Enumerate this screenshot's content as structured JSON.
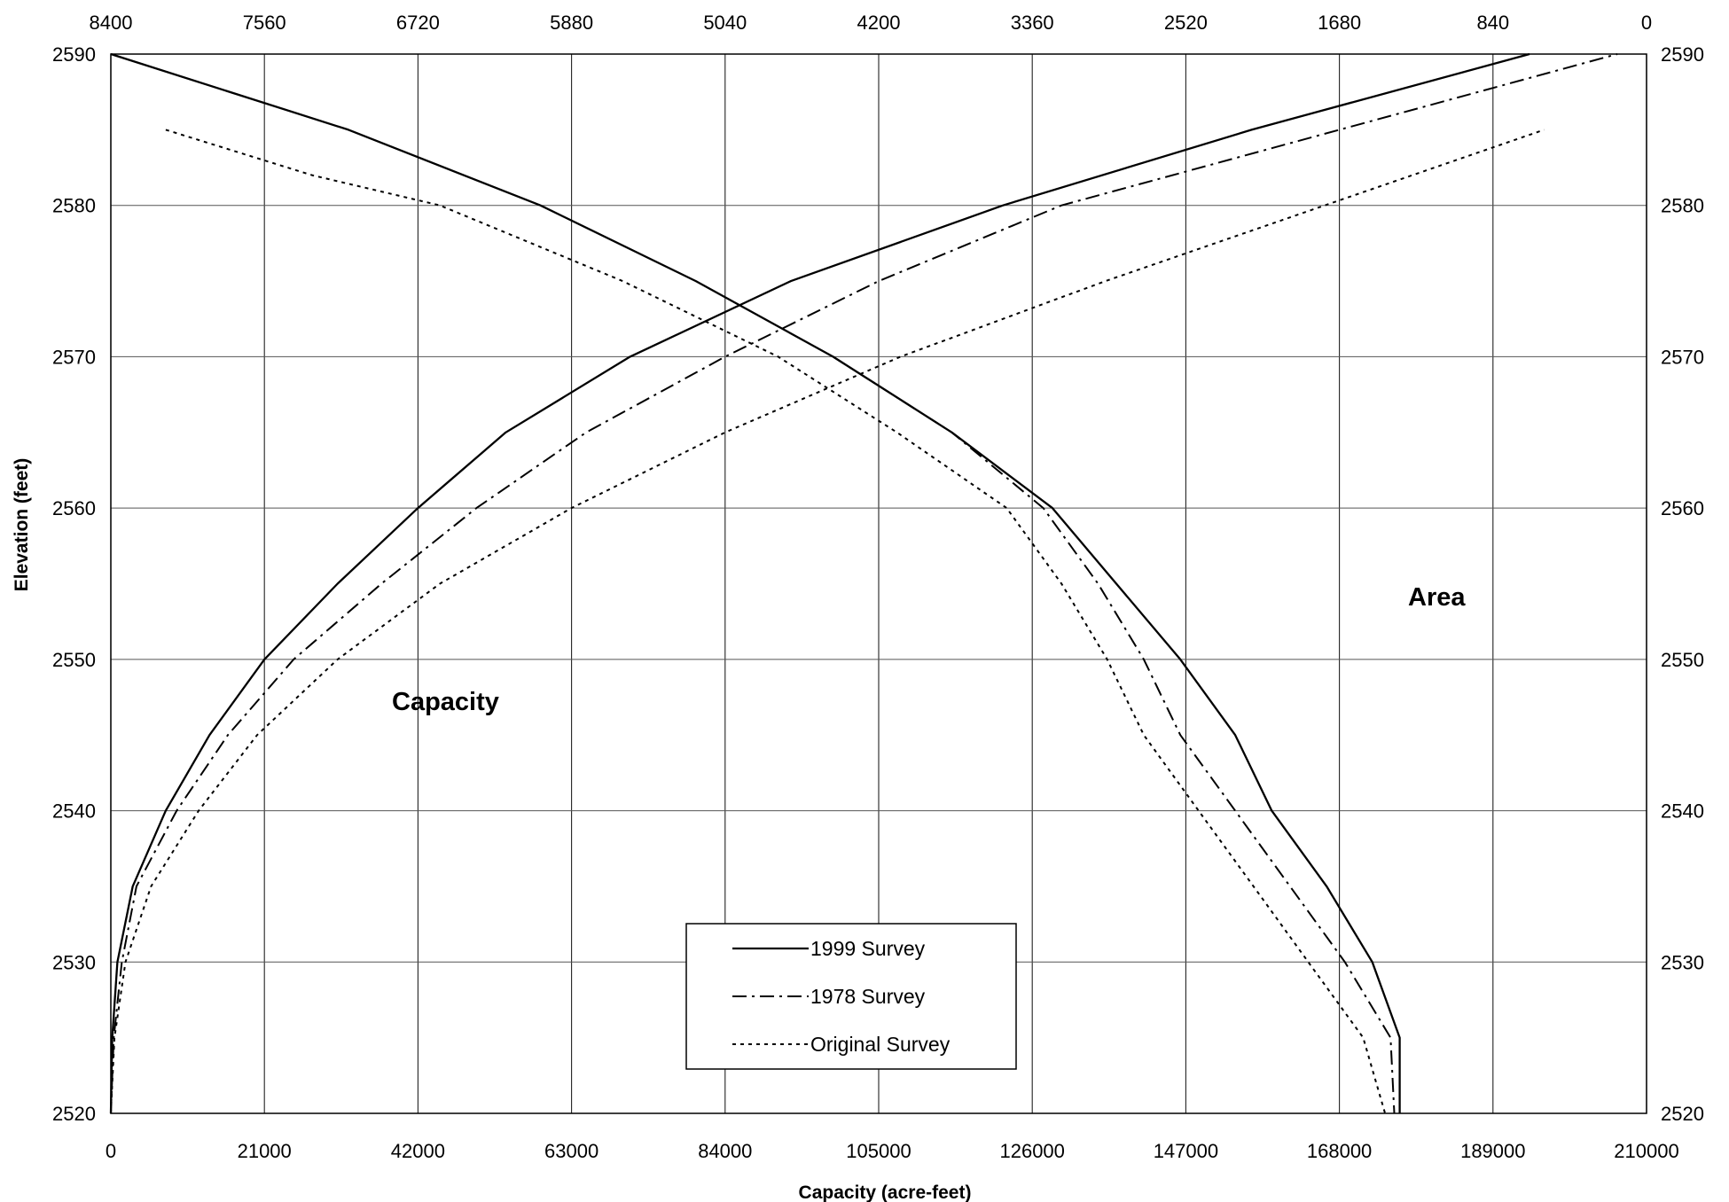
{
  "chart_data": {
    "type": "line",
    "title": "",
    "xlabel": "Capacity (acre-feet)",
    "ylabel": "Elevation (feet)",
    "x_bottom": {
      "min": 0,
      "max": 210000,
      "ticks": [
        "0",
        "21000",
        "42000",
        "63000",
        "84000",
        "105000",
        "126000",
        "147000",
        "168000",
        "189000",
        "210000"
      ]
    },
    "x_top": {
      "min": 0,
      "max": 8400,
      "reversed": true,
      "ticks": [
        "8400",
        "7560",
        "6720",
        "5880",
        "5040",
        "4200",
        "3360",
        "2520",
        "1680",
        "840",
        "0"
      ]
    },
    "y": {
      "min": 2520,
      "max": 2590,
      "ticks": [
        "2520",
        "2530",
        "2540",
        "2550",
        "2560",
        "2570",
        "2580",
        "2590"
      ]
    },
    "grid": true,
    "legend_position": "bottom-center",
    "annotations": [
      {
        "text": "Capacity"
      },
      {
        "text": "Area"
      }
    ],
    "legend": [
      {
        "label": "1999 Survey",
        "style": "solid"
      },
      {
        "label": "1978 Survey",
        "style": "dash-dot"
      },
      {
        "label": "Original Survey",
        "style": "dotted"
      }
    ],
    "capacity_series": [
      {
        "name": "1999 Survey",
        "style": "solid",
        "points": [
          [
            0,
            2520
          ],
          [
            200,
            2525
          ],
          [
            900,
            2530
          ],
          [
            3000,
            2535
          ],
          [
            7500,
            2540
          ],
          [
            13500,
            2545
          ],
          [
            21000,
            2550
          ],
          [
            31000,
            2555
          ],
          [
            42000,
            2560
          ],
          [
            54000,
            2565
          ],
          [
            71000,
            2570
          ],
          [
            93000,
            2575
          ],
          [
            122000,
            2580
          ],
          [
            156000,
            2585
          ],
          [
            194000,
            2590
          ]
        ]
      },
      {
        "name": "1978 Survey",
        "style": "dash-dot",
        "points": [
          [
            0,
            2520
          ],
          [
            400,
            2525
          ],
          [
            1500,
            2530
          ],
          [
            3500,
            2535
          ],
          [
            9000,
            2540
          ],
          [
            16000,
            2545
          ],
          [
            25000,
            2550
          ],
          [
            37000,
            2555
          ],
          [
            50000,
            2560
          ],
          [
            65000,
            2565
          ],
          [
            84000,
            2570
          ],
          [
            105000,
            2575
          ],
          [
            130000,
            2580
          ],
          [
            168000,
            2585
          ],
          [
            206000,
            2590
          ]
        ]
      },
      {
        "name": "Original Survey",
        "style": "dotted",
        "points": [
          [
            0,
            2520
          ],
          [
            500,
            2525
          ],
          [
            2000,
            2530
          ],
          [
            5500,
            2535
          ],
          [
            12000,
            2540
          ],
          [
            20000,
            2545
          ],
          [
            31000,
            2550
          ],
          [
            45000,
            2555
          ],
          [
            63000,
            2560
          ],
          [
            84000,
            2565
          ],
          [
            108000,
            2570
          ],
          [
            136000,
            2575
          ],
          [
            166000,
            2580
          ],
          [
            196000,
            2585
          ]
        ]
      }
    ],
    "area_series": [
      {
        "name": "1999 Survey",
        "style": "solid",
        "points": [
          [
            8400,
            2590
          ],
          [
            7100,
            2585
          ],
          [
            6050,
            2580
          ],
          [
            5200,
            2575
          ],
          [
            4450,
            2570
          ],
          [
            3800,
            2565
          ],
          [
            3250,
            2560
          ],
          [
            2900,
            2555
          ],
          [
            2550,
            2550
          ],
          [
            2250,
            2545
          ],
          [
            2050,
            2540
          ],
          [
            1750,
            2535
          ],
          [
            1500,
            2530
          ],
          [
            1350,
            2525
          ],
          [
            1350,
            2520
          ]
        ]
      },
      {
        "name": "1978 Survey",
        "style": "dash-dot",
        "points": [
          [
            4450,
            2570
          ],
          [
            3800,
            2565
          ],
          [
            3300,
            2560
          ],
          [
            3000,
            2555
          ],
          [
            2750,
            2550
          ],
          [
            2550,
            2545
          ],
          [
            2250,
            2540
          ],
          [
            1950,
            2535
          ],
          [
            1650,
            2530
          ],
          [
            1400,
            2525
          ],
          [
            1380,
            2520
          ]
        ]
      },
      {
        "name": "Original Survey",
        "style": "dotted",
        "points": [
          [
            8100,
            2585
          ],
          [
            7300,
            2582
          ],
          [
            6600,
            2580
          ],
          [
            5600,
            2575
          ],
          [
            4750,
            2570
          ],
          [
            4100,
            2565
          ],
          [
            3500,
            2560
          ],
          [
            3200,
            2555
          ],
          [
            2950,
            2550
          ],
          [
            2750,
            2545
          ],
          [
            2450,
            2540
          ],
          [
            2150,
            2535
          ],
          [
            1850,
            2530
          ],
          [
            1550,
            2525
          ],
          [
            1430,
            2520
          ]
        ]
      }
    ]
  }
}
